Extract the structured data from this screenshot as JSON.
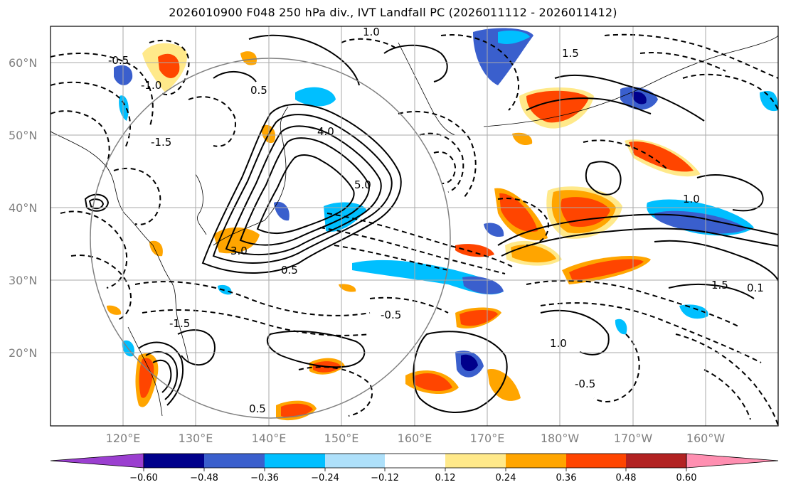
{
  "title": "2026010900 F048 250 hPa div., IVT Landfall PC (2026011112 - 2026011412)",
  "map": {
    "lat_labels": [
      "60°N",
      "50°N",
      "40°N",
      "30°N",
      "20°N"
    ],
    "lat_values": [
      60,
      50,
      40,
      30,
      20
    ],
    "lon_labels": [
      "120°E",
      "130°E",
      "140°E",
      "150°E",
      "160°E",
      "170°E",
      "180°W",
      "170°W",
      "160°W"
    ],
    "lon_values": [
      120,
      130,
      140,
      150,
      160,
      170,
      180,
      190,
      200
    ],
    "extent": {
      "lon_min": 110,
      "lon_max": 210,
      "lat_min": 10,
      "lat_max": 65
    },
    "contour_labels": [
      "-0.5",
      "-1.0",
      "-1.5",
      "0.5",
      "1.0",
      "1.5",
      "3.0",
      "4.0",
      "5.0",
      "-0.5",
      "0.5",
      "1.0",
      "-1.5",
      "0.5",
      "1.0",
      "-0.5",
      "1.5",
      "0.1"
    ],
    "colors": {
      "grid": "#aaaaaa",
      "circle": "#808080",
      "contour": "#000000"
    }
  },
  "colorbar": {
    "ticks": [
      "−0.60",
      "−0.48",
      "−0.36",
      "−0.24",
      "−0.12",
      "0.12",
      "0.24",
      "0.36",
      "0.48",
      "0.60"
    ],
    "colors": [
      "#9b3fd0",
      "#00008b",
      "#3a5fcd",
      "#00bfff",
      "#aee0fa",
      "#ffffff",
      "#ffe98a",
      "#ffa500",
      "#ff4500",
      "#b22222",
      "#ff8fb1"
    ]
  }
}
